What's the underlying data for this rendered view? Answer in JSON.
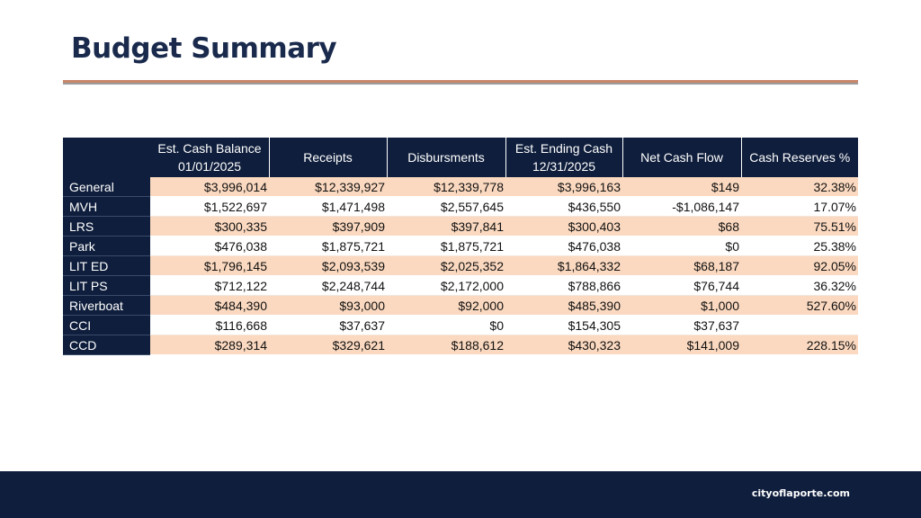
{
  "page": {
    "title": "Budget Summary",
    "footer_text": "cityoflaporte.com"
  },
  "colors": {
    "navy": "#0f1e3c",
    "peach": "#fbd9c0",
    "accent_rule": "#c8866a"
  },
  "table": {
    "headers": [
      "",
      "Est. Cash Balance 01/01/2025",
      "Receipts",
      "Disbursments",
      "Est. Ending Cash 12/31/2025",
      "Net Cash Flow",
      "Cash Reserves %"
    ],
    "rows": [
      [
        "General",
        "$3,996,014",
        "$12,339,927",
        "$12,339,778",
        "$3,996,163",
        "$149",
        "32.38%"
      ],
      [
        "MVH",
        "$1,522,697",
        "$1,471,498",
        "$2,557,645",
        "$436,550",
        "-$1,086,147",
        "17.07%"
      ],
      [
        "LRS",
        "$300,335",
        "$397,909",
        "$397,841",
        "$300,403",
        "$68",
        "75.51%"
      ],
      [
        "Park",
        "$476,038",
        "$1,875,721",
        "$1,875,721",
        "$476,038",
        "$0",
        "25.38%"
      ],
      [
        "LIT ED",
        "$1,796,145",
        "$2,093,539",
        "$2,025,352",
        "$1,864,332",
        "$68,187",
        "92.05%"
      ],
      [
        "LIT PS",
        "$712,122",
        "$2,248,744",
        "$2,172,000",
        "$788,866",
        "$76,744",
        "36.32%"
      ],
      [
        "Riverboat",
        "$484,390",
        "$93,000",
        "$92,000",
        "$485,390",
        "$1,000",
        "527.60%"
      ],
      [
        "CCI",
        "$116,668",
        "$37,637",
        "$0",
        "$154,305",
        "$37,637",
        ""
      ],
      [
        "CCD",
        "$289,314",
        "$329,621",
        "$188,612",
        "$430,323",
        "$141,009",
        "228.15%"
      ]
    ]
  }
}
